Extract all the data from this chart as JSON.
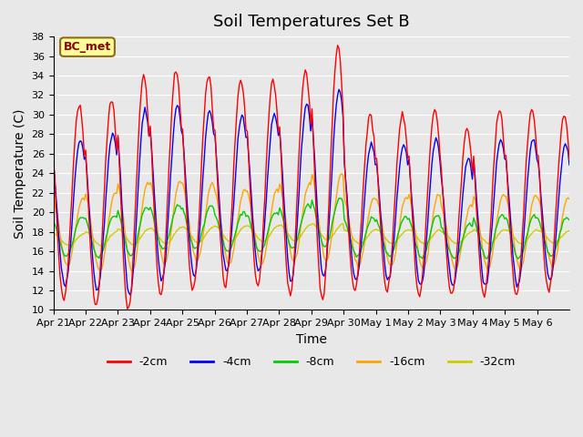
{
  "title": "Soil Temperatures Set B",
  "xlabel": "Time",
  "ylabel": "Soil Temperature (C)",
  "ylim": [
    10,
    38
  ],
  "yticks": [
    10,
    12,
    14,
    16,
    18,
    20,
    22,
    24,
    26,
    28,
    30,
    32,
    34,
    36,
    38
  ],
  "annotation": "BC_met",
  "background_color": "#e8e8e8",
  "plot_bg_color": "#e8e8e8",
  "series_colors": {
    "-2cm": "#ff0000",
    "-4cm": "#0000ff",
    "-8cm": "#00cc00",
    "-16cm": "#ffa500",
    "-32cm": "#cccc00"
  },
  "xtick_labels": [
    "Apr 21",
    "Apr 22",
    "Apr 23",
    "Apr 24",
    "Apr 25",
    "Apr 26",
    "Apr 27",
    "Apr 28",
    "Apr 29",
    "Apr 30",
    "May 1",
    "May 2",
    "May 3",
    "May 4",
    "May 5",
    "May 6"
  ],
  "n_points_per_day": 24,
  "days": 16
}
